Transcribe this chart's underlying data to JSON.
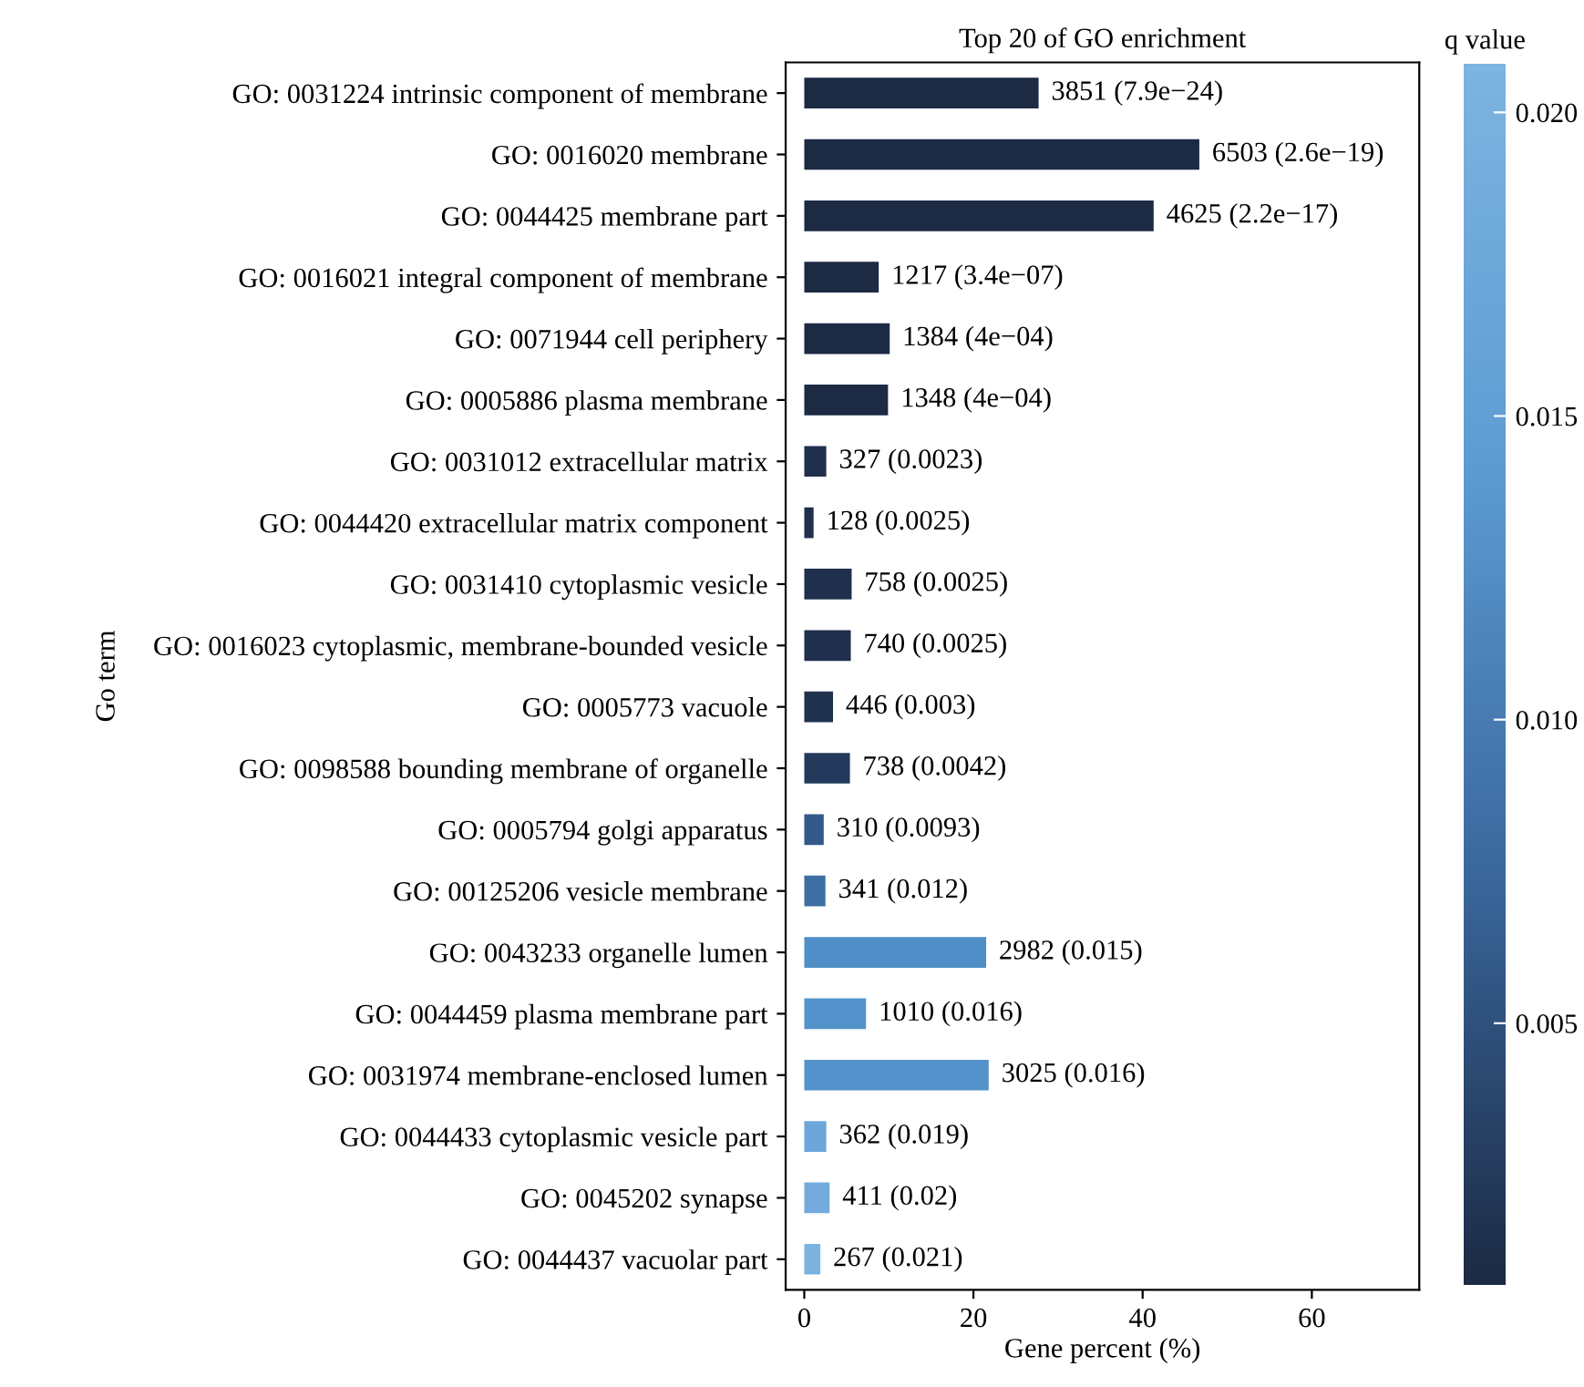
{
  "chart_data": {
    "type": "bar",
    "orientation": "horizontal",
    "title": "Top 20 of GO enrichment",
    "xlabel": "Gene percent (%)",
    "ylabel": "Go term",
    "clabel": "q value",
    "categories": [
      "GO: 0031224 intrinsic component of membrane",
      "GO: 0016020 membrane",
      "GO: 0044425 membrane part",
      "GO: 0016021 integral component of membrane",
      "GO: 0071944 cell periphery",
      "GO: 0005886 plasma membrane",
      "GO: 0031012 extracellular matrix",
      "GO: 0044420 extracellular matrix component",
      "GO: 0031410 cytoplasmic vesicle",
      "GO: 0016023 cytoplasmic, membrane-bounded vesicle",
      "GO: 0005773 vacuole",
      "GO: 0098588 bounding membrane of organelle",
      "GO: 0005794 golgi apparatus",
      "GO: 00125206 vesicle membrane",
      "GO: 0043233 organelle lumen",
      "GO: 0044459 plasma membrane part",
      "GO: 0031974 membrane-enclosed lumen",
      "GO: 0044433 cytoplasmic vesicle part",
      "GO: 0045202 synapse",
      "GO: 0044437 vacuolar part"
    ],
    "values": [
      27.7,
      46.7,
      41.3,
      8.8,
      10.1,
      9.9,
      2.6,
      1.1,
      5.6,
      5.5,
      3.4,
      5.4,
      2.3,
      2.5,
      21.5,
      7.3,
      21.8,
      2.6,
      3.0,
      1.9
    ],
    "annotations": [
      {
        "text": "3851 (7.9e−24)",
        "x": 27.7,
        "y": "GO: 0031224 intrinsic component of membrane"
      },
      {
        "text": "6503 (2.6e−19)",
        "x": 46.7,
        "y": "GO: 0016020 membrane"
      },
      {
        "text": "4625 (2.2e−17)",
        "x": 41.3,
        "y": "GO: 0044425 membrane part"
      },
      {
        "text": "1217 (3.4e−07)",
        "x": 8.8,
        "y": "GO: 0016021 integral component of membrane"
      },
      {
        "text": "1384 (4e−04)",
        "x": 10.1,
        "y": "GO: 0071944 cell periphery"
      },
      {
        "text": "1348 (4e−04)",
        "x": 9.9,
        "y": "GO: 0005886 plasma membrane"
      },
      {
        "text": "327 (0.0023)",
        "x": 2.6,
        "y": "GO: 0031012 extracellular matrix"
      },
      {
        "text": "128 (0.0025)",
        "x": 1.1,
        "y": "GO: 0044420 extracellular matrix component"
      },
      {
        "text": "758 (0.0025)",
        "x": 5.6,
        "y": "GO: 0031410 cytoplasmic vesicle"
      },
      {
        "text": "740 (0.0025)",
        "x": 5.5,
        "y": "GO: 0016023 cytoplasmic, membrane-bounded vesicle"
      },
      {
        "text": "446 (0.003)",
        "x": 3.4,
        "y": "GO: 0005773 vacuole"
      },
      {
        "text": "738 (0.0042)",
        "x": 5.4,
        "y": "GO: 0098588 bounding membrane of organelle"
      },
      {
        "text": "310 (0.0093)",
        "x": 2.3,
        "y": "GO: 0005794 golgi apparatus"
      },
      {
        "text": "341 (0.012)",
        "x": 2.5,
        "y": "GO: 00125206 vesicle membrane"
      },
      {
        "text": "2982 (0.015)",
        "x": 21.5,
        "y": "GO: 0043233 organelle lumen"
      },
      {
        "text": "1010 (0.016)",
        "x": 7.3,
        "y": "GO: 0044459 plasma membrane part"
      },
      {
        "text": "3025 (0.016)",
        "x": 21.8,
        "y": "GO: 0031974 membrane-enclosed lumen"
      },
      {
        "text": "362 (0.019)",
        "x": 2.6,
        "y": "GO: 0044433 cytoplasmic vesicle part"
      },
      {
        "text": "411 (0.02)",
        "x": 3.0,
        "y": "GO: 0045202 synapse"
      },
      {
        "text": "267 (0.021)",
        "x": 1.9,
        "y": "GO: 0044437 vacuolar part"
      }
    ],
    "colors": [
      "#1c2a44",
      "#1c2a44",
      "#1c2a44",
      "#1c2a44",
      "#1c2a44",
      "#1c2a44",
      "#1f2f4c",
      "#1f2f4d",
      "#1f2f4d",
      "#1f2f4d",
      "#21324f",
      "#243a5c",
      "#32598a",
      "#3d6fa2",
      "#4f8ec6",
      "#5392ca",
      "#5392ca",
      "#6ca6da",
      "#73abdd",
      "#7ab3e0"
    ],
    "xlim": [
      -2.2,
      72.7
    ],
    "xticks": [
      0,
      20,
      40,
      60
    ],
    "clim": [
      0.0007,
      0.0208
    ],
    "cticks": [
      0.005,
      {
        "value": 0.01,
        "label": "0.010"
      },
      0.015,
      {
        "value": 0.02,
        "label": "0.020"
      }
    ],
    "grid": false,
    "legend": false
  }
}
